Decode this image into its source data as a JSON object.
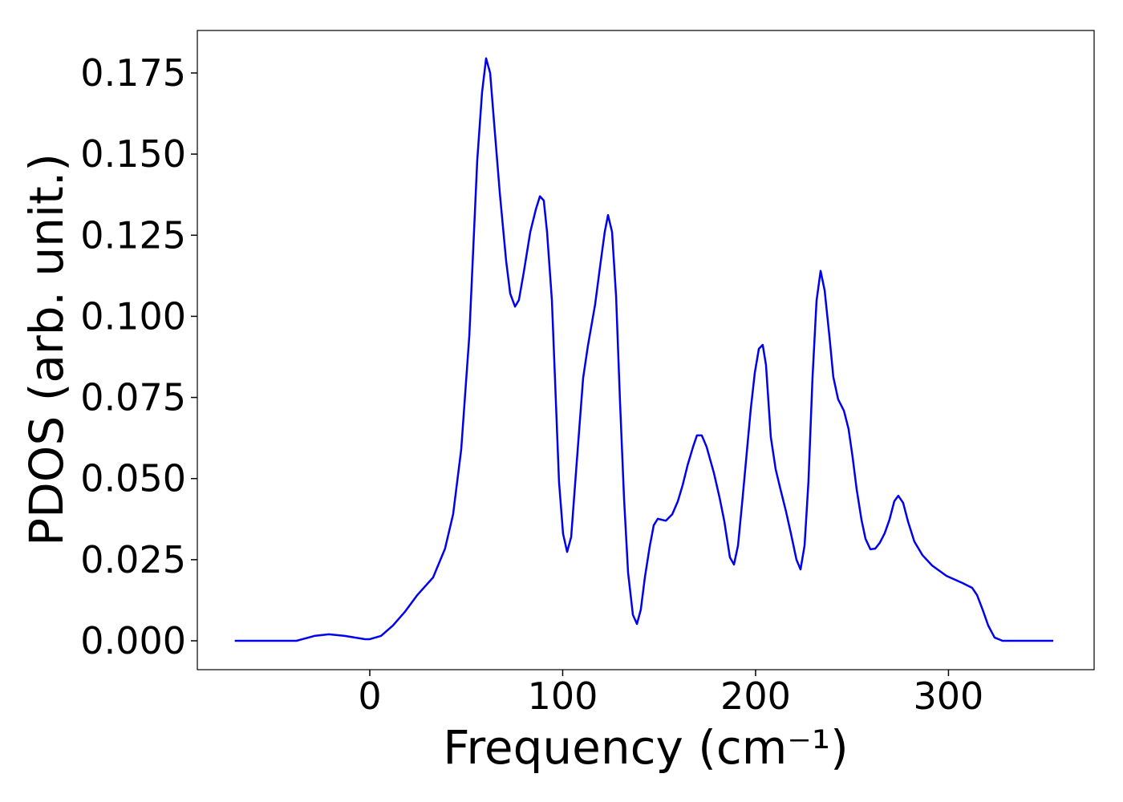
{
  "chart_data": {
    "type": "line",
    "xlabel": "Frequency (cm⁻¹)",
    "ylabel": "PDOS (arb. unit.)",
    "color": "#0000ee",
    "x": [
      -70,
      -38,
      -28.7,
      -21.2,
      -13,
      -2.5,
      0,
      5.8,
      12,
      18.3,
      24.5,
      32.8,
      39,
      43.2,
      47.4,
      51.6,
      55.7,
      58.2,
      60.3,
      62.4,
      64.4,
      67.4,
      70.7,
      72.8,
      75.3,
      77.3,
      79.8,
      83.2,
      86.1,
      88.2,
      90.2,
      91.9,
      94.4,
      96,
      98.1,
      100.2,
      102.3,
      104.4,
      106.9,
      110.6,
      113.1,
      116.8,
      119.3,
      121.8,
      123.5,
      125.6,
      127.7,
      129.7,
      131.8,
      133.9,
      136.4,
      138.5,
      140.5,
      142.6,
      145.1,
      147.2,
      149.3,
      153.5,
      156.8,
      159.7,
      162.2,
      164.7,
      167.6,
      169.6,
      172.1,
      174.6,
      178.4,
      181.3,
      183.8,
      186.7,
      188.8,
      190.9,
      193.3,
      195.4,
      197.5,
      199.6,
      201.7,
      203.7,
      205.4,
      207.9,
      210.4,
      212.9,
      215.8,
      218.3,
      221.2,
      223.3,
      225.4,
      227.4,
      229.5,
      231.6,
      233.7,
      235.8,
      238.3,
      240.3,
      242.8,
      245.8,
      248.2,
      250.3,
      252.4,
      254.9,
      257,
      259.5,
      262,
      264.4,
      266.9,
      269.4,
      271.9,
      274,
      276.5,
      279,
      282.3,
      286.5,
      291.5,
      299,
      307.3,
      312.3,
      314.8,
      317.7,
      320.6,
      323.9,
      328,
      354.3
    ],
    "values": [
      0,
      0,
      0.0015,
      0.002,
      0.0015,
      0.0005,
      0.0005,
      0.0015,
      0.0047,
      0.009,
      0.014,
      0.0195,
      0.0284,
      0.039,
      0.059,
      0.094,
      0.148,
      0.169,
      0.1795,
      0.175,
      0.16,
      0.138,
      0.117,
      0.107,
      0.103,
      0.105,
      0.1135,
      0.126,
      0.133,
      0.137,
      0.1357,
      0.126,
      0.105,
      0.081,
      0.049,
      0.033,
      0.0274,
      0.032,
      0.052,
      0.081,
      0.091,
      0.1036,
      0.115,
      0.126,
      0.1312,
      0.126,
      0.106,
      0.074,
      0.044,
      0.021,
      0.008,
      0.0052,
      0.0096,
      0.0195,
      0.029,
      0.0356,
      0.0376,
      0.037,
      0.039,
      0.043,
      0.048,
      0.054,
      0.0598,
      0.0633,
      0.0633,
      0.0598,
      0.0517,
      0.0442,
      0.0368,
      0.0257,
      0.0235,
      0.0294,
      0.0442,
      0.0578,
      0.0714,
      0.0826,
      0.09,
      0.0912,
      0.085,
      0.0628,
      0.0529,
      0.0467,
      0.0398,
      0.0331,
      0.025,
      0.022,
      0.0294,
      0.049,
      0.081,
      0.1048,
      0.114,
      0.108,
      0.0937,
      0.0813,
      0.0744,
      0.0709,
      0.0653,
      0.0566,
      0.0467,
      0.0373,
      0.0314,
      0.0282,
      0.0284,
      0.0302,
      0.0331,
      0.0373,
      0.043,
      0.0447,
      0.0425,
      0.0368,
      0.0306,
      0.0264,
      0.0232,
      0.02,
      0.0178,
      0.0163,
      0.0141,
      0.0096,
      0.0047,
      0.001,
      0,
      0
    ],
    "xlim": [
      -89.4,
      375.5
    ],
    "ylim": [
      -0.0089,
      0.1881
    ],
    "xticks": [
      0,
      100,
      200,
      300
    ],
    "yticks": [
      {
        "value": 0,
        "label": "0.000"
      },
      {
        "value": 0.025,
        "label": "0.025"
      },
      {
        "value": 0.05,
        "label": "0.050"
      },
      {
        "value": 0.075,
        "label": "0.075"
      },
      {
        "value": 0.1,
        "label": "0.100"
      },
      {
        "value": 0.125,
        "label": "0.125"
      },
      {
        "value": 0.15,
        "label": "0.150"
      },
      {
        "value": 0.175,
        "label": "0.175"
      }
    ],
    "grid": false
  }
}
